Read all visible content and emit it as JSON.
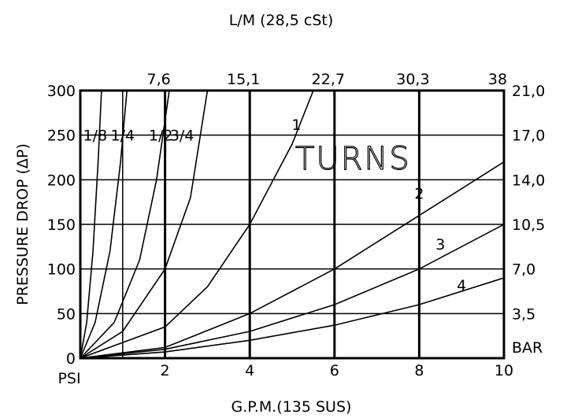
{
  "chart_data": {
    "type": "line",
    "title": "L/M (28,5 cSt)",
    "xlabel": "G.P.M.(135 SUS)",
    "ylabel": "PRESSURE DROP (ΔP)",
    "y_unit_left": "PSI",
    "y_unit_right": "BAR",
    "xlim": [
      0,
      10
    ],
    "ylim": [
      0,
      300
    ],
    "x_ticks": [
      "2",
      "4",
      "6",
      "8",
      "10"
    ],
    "y_ticks": [
      "0",
      "50",
      "100",
      "150",
      "200",
      "250",
      "300"
    ],
    "top_ticks": [
      "7,6",
      "15,1",
      "22,7",
      "30,3",
      "38"
    ],
    "right_ticks": [
      "3,5",
      "7,0",
      "10,5",
      "14,0",
      "17,0",
      "21,0"
    ],
    "grid": true,
    "annotation": "TURNS",
    "series": [
      {
        "name": "1/8",
        "x": [
          0,
          0.15,
          0.3,
          0.42,
          0.5
        ],
        "y": [
          0,
          40,
          120,
          220,
          300
        ]
      },
      {
        "name": "1/4",
        "x": [
          0,
          0.35,
          0.7,
          0.95,
          1.1
        ],
        "y": [
          0,
          40,
          120,
          220,
          300
        ]
      },
      {
        "name": "1/2",
        "x": [
          0,
          0.8,
          1.4,
          1.8,
          2.1
        ],
        "y": [
          0,
          40,
          110,
          200,
          300
        ]
      },
      {
        "name": "3/4",
        "x": [
          0,
          1.0,
          2.0,
          2.6,
          3.0
        ],
        "y": [
          0,
          30,
          100,
          180,
          300
        ]
      },
      {
        "name": "1",
        "x": [
          0,
          2.0,
          3.0,
          4.0,
          5.0,
          5.5
        ],
        "y": [
          0,
          35,
          80,
          150,
          240,
          300
        ]
      },
      {
        "name": "2",
        "x": [
          0,
          2.0,
          4.0,
          6.0,
          8.0,
          10.0
        ],
        "y": [
          0,
          12,
          50,
          100,
          160,
          220
        ]
      },
      {
        "name": "3",
        "x": [
          0,
          2.0,
          4.0,
          6.0,
          8.0,
          10.0
        ],
        "y": [
          0,
          10,
          30,
          60,
          100,
          150
        ]
      },
      {
        "name": "4",
        "x": [
          0,
          2.0,
          4.0,
          6.0,
          8.0,
          10.0
        ],
        "y": [
          0,
          7,
          20,
          37,
          60,
          90
        ]
      }
    ]
  }
}
